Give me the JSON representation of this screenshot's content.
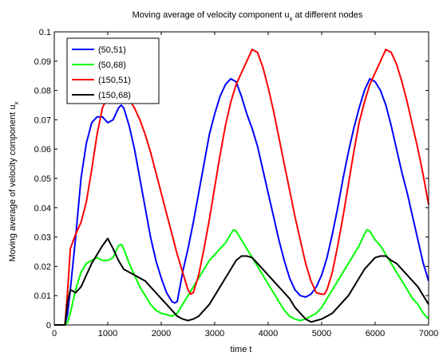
{
  "chart_data": {
    "type": "line",
    "title": "Moving average of velocity component u",
    "title_sub": "x",
    "title_suffix": " at different nodes",
    "xlabel": "time t",
    "ylabel": "Moving average of velocity component u",
    "ylabel_sub": "x",
    "xlim": [
      0,
      7000
    ],
    "ylim": [
      0,
      0.1
    ],
    "xticks": [
      "0",
      "1000",
      "2000",
      "3000",
      "4000",
      "5000",
      "6000",
      "7000"
    ],
    "yticks": [
      "0",
      "0.01",
      "0.02",
      "0.03",
      "0.04",
      "0.05",
      "0.06",
      "0.07",
      "0.08",
      "0.09",
      "0.1"
    ],
    "legend_position": "top-left",
    "grid": false,
    "series": [
      {
        "name": "(50,51)",
        "color": "#0000ff",
        "x": [
          0,
          200,
          250,
          300,
          400,
          500,
          600,
          700,
          800,
          900,
          1000,
          1100,
          1200,
          1250,
          1300,
          1400,
          1500,
          1600,
          1700,
          1800,
          1900,
          2000,
          2100,
          2200,
          2250,
          2300,
          2400,
          2500,
          2600,
          2700,
          2800,
          2900,
          3000,
          3100,
          3200,
          3300,
          3400,
          3500,
          3600,
          3700,
          3800,
          3900,
          4000,
          4100,
          4200,
          4300,
          4400,
          4500,
          4600,
          4700,
          4800,
          4900,
          5000,
          5100,
          5200,
          5300,
          5400,
          5500,
          5600,
          5700,
          5800,
          5900,
          6000,
          6100,
          6200,
          6300,
          6400,
          6500,
          6600,
          6700,
          6800,
          6900,
          7000
        ],
        "y": [
          0,
          0,
          0.004,
          0.012,
          0.03,
          0.05,
          0.062,
          0.069,
          0.071,
          0.071,
          0.069,
          0.07,
          0.074,
          0.075,
          0.074,
          0.068,
          0.06,
          0.05,
          0.04,
          0.03,
          0.022,
          0.016,
          0.011,
          0.008,
          0.0075,
          0.008,
          0.018,
          0.026,
          0.035,
          0.045,
          0.055,
          0.065,
          0.072,
          0.078,
          0.082,
          0.084,
          0.083,
          0.078,
          0.072,
          0.067,
          0.061,
          0.053,
          0.045,
          0.037,
          0.029,
          0.022,
          0.016,
          0.012,
          0.01,
          0.0095,
          0.0105,
          0.013,
          0.017,
          0.023,
          0.031,
          0.04,
          0.05,
          0.059,
          0.067,
          0.074,
          0.08,
          0.084,
          0.083,
          0.08,
          0.075,
          0.068,
          0.06,
          0.052,
          0.045,
          0.037,
          0.029,
          0.021,
          0.015
        ]
      },
      {
        "name": "(50,68)",
        "color": "#00ff00",
        "x": [
          0,
          200,
          250,
          300,
          400,
          500,
          600,
          700,
          800,
          900,
          1000,
          1100,
          1200,
          1250,
          1300,
          1400,
          1500,
          1600,
          1700,
          1800,
          1900,
          2000,
          2100,
          2200,
          2300,
          2400,
          2500,
          2600,
          2700,
          2800,
          2900,
          3000,
          3100,
          3200,
          3300,
          3350,
          3400,
          3500,
          3600,
          3700,
          3800,
          3900,
          4000,
          4100,
          4200,
          4300,
          4400,
          4500,
          4600,
          4700,
          4800,
          4900,
          5000,
          5100,
          5200,
          5300,
          5400,
          5500,
          5600,
          5700,
          5800,
          5850,
          5900,
          6000,
          6100,
          6200,
          6300,
          6400,
          6500,
          6600,
          6700,
          6800,
          6900,
          7000
        ],
        "y": [
          0,
          0,
          0.001,
          0.004,
          0.012,
          0.018,
          0.021,
          0.022,
          0.023,
          0.022,
          0.022,
          0.023,
          0.027,
          0.0275,
          0.026,
          0.021,
          0.017,
          0.013,
          0.01,
          0.007,
          0.005,
          0.004,
          0.0035,
          0.003,
          0.004,
          0.007,
          0.01,
          0.013,
          0.016,
          0.019,
          0.022,
          0.024,
          0.026,
          0.028,
          0.031,
          0.0325,
          0.032,
          0.029,
          0.026,
          0.023,
          0.02,
          0.017,
          0.014,
          0.011,
          0.008,
          0.005,
          0.003,
          0.002,
          0.0015,
          0.002,
          0.003,
          0.004,
          0.006,
          0.009,
          0.012,
          0.015,
          0.018,
          0.021,
          0.024,
          0.027,
          0.031,
          0.0325,
          0.032,
          0.029,
          0.027,
          0.024,
          0.021,
          0.018,
          0.015,
          0.012,
          0.009,
          0.007,
          0.004,
          0.002
        ]
      },
      {
        "name": "(150,51)",
        "color": "#ff0000",
        "x": [
          0,
          200,
          250,
          300,
          400,
          500,
          600,
          700,
          800,
          900,
          1000,
          1100,
          1200,
          1300,
          1400,
          1500,
          1600,
          1700,
          1800,
          1900,
          2000,
          2100,
          2200,
          2300,
          2400,
          2500,
          2550,
          2600,
          2700,
          2800,
          2900,
          3000,
          3100,
          3200,
          3300,
          3400,
          3500,
          3600,
          3700,
          3800,
          3900,
          4000,
          4100,
          4200,
          4300,
          4400,
          4500,
          4600,
          4700,
          4800,
          4900,
          5000,
          5050,
          5100,
          5200,
          5300,
          5400,
          5500,
          5600,
          5700,
          5800,
          5900,
          6000,
          6100,
          6200,
          6300,
          6400,
          6500,
          6600,
          6700,
          6800,
          6900,
          7000
        ],
        "y": [
          0,
          0,
          0.012,
          0.026,
          0.031,
          0.035,
          0.042,
          0.053,
          0.065,
          0.074,
          0.078,
          0.08,
          0.081,
          0.08,
          0.077,
          0.074,
          0.07,
          0.065,
          0.059,
          0.052,
          0.045,
          0.038,
          0.031,
          0.024,
          0.018,
          0.012,
          0.0105,
          0.011,
          0.017,
          0.026,
          0.036,
          0.047,
          0.058,
          0.068,
          0.076,
          0.082,
          0.086,
          0.09,
          0.094,
          0.093,
          0.088,
          0.081,
          0.073,
          0.064,
          0.055,
          0.046,
          0.037,
          0.029,
          0.021,
          0.015,
          0.011,
          0.0105,
          0.0105,
          0.012,
          0.018,
          0.027,
          0.037,
          0.048,
          0.059,
          0.069,
          0.076,
          0.082,
          0.086,
          0.09,
          0.094,
          0.093,
          0.089,
          0.083,
          0.076,
          0.068,
          0.06,
          0.051,
          0.041
        ]
      },
      {
        "name": "(150,68)",
        "color": "#000000",
        "x": [
          0,
          200,
          250,
          300,
          400,
          500,
          600,
          700,
          800,
          900,
          1000,
          1100,
          1200,
          1300,
          1400,
          1500,
          1600,
          1700,
          1800,
          1900,
          2000,
          2100,
          2200,
          2300,
          2400,
          2500,
          2600,
          2700,
          2800,
          2900,
          3000,
          3100,
          3200,
          3300,
          3400,
          3500,
          3600,
          3700,
          3800,
          3900,
          4000,
          4100,
          4200,
          4300,
          4400,
          4500,
          4600,
          4700,
          4800,
          4900,
          5000,
          5100,
          5200,
          5300,
          5400,
          5500,
          5600,
          5700,
          5800,
          5900,
          6000,
          6100,
          6200,
          6300,
          6400,
          6500,
          6600,
          6700,
          6800,
          6900,
          7000
        ],
        "y": [
          0,
          0,
          0.008,
          0.012,
          0.011,
          0.013,
          0.017,
          0.021,
          0.024,
          0.027,
          0.0295,
          0.026,
          0.022,
          0.019,
          0.018,
          0.017,
          0.016,
          0.015,
          0.013,
          0.011,
          0.009,
          0.007,
          0.005,
          0.003,
          0.002,
          0.0015,
          0.002,
          0.003,
          0.005,
          0.007,
          0.01,
          0.013,
          0.016,
          0.019,
          0.022,
          0.0235,
          0.0235,
          0.023,
          0.021,
          0.019,
          0.017,
          0.015,
          0.013,
          0.011,
          0.009,
          0.006,
          0.004,
          0.002,
          0.001,
          0.0015,
          0.002,
          0.003,
          0.004,
          0.006,
          0.008,
          0.01,
          0.013,
          0.016,
          0.019,
          0.021,
          0.023,
          0.0235,
          0.0235,
          0.022,
          0.021,
          0.019,
          0.017,
          0.015,
          0.013,
          0.01,
          0.007
        ]
      }
    ]
  }
}
